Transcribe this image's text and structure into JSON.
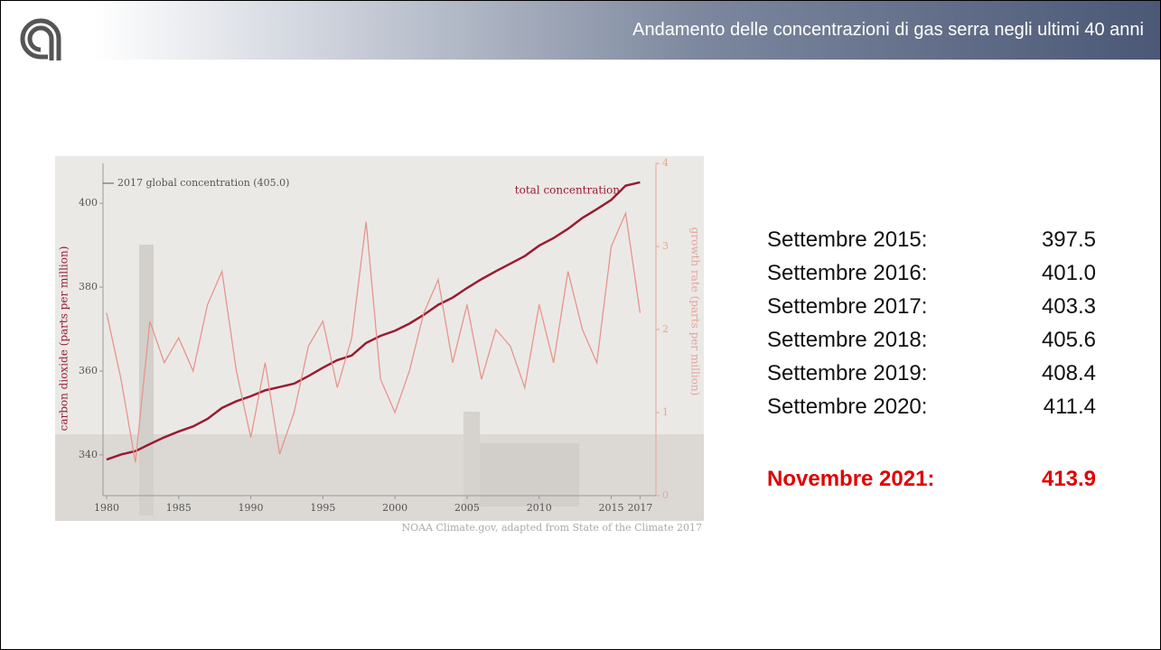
{
  "header": {
    "title": "Andamento delle concentrazioni di gas serra negli ultimi 40 anni"
  },
  "chart_data": {
    "type": "line",
    "ylabel": "carbon dioxide (parts per million)",
    "y2label": "growth rate (parts per million)",
    "annotation": "2017 global concentration (405.0)",
    "source": "NOAA Climate.gov, adapted from State of the Climate 2017",
    "x": [
      1980,
      1981,
      1982,
      1983,
      1984,
      1985,
      1986,
      1987,
      1988,
      1989,
      1990,
      1991,
      1992,
      1993,
      1994,
      1995,
      1996,
      1997,
      1998,
      1999,
      2000,
      2001,
      2002,
      2003,
      2004,
      2005,
      2006,
      2007,
      2008,
      2009,
      2010,
      2011,
      2012,
      2013,
      2014,
      2015,
      2016,
      2017
    ],
    "series": [
      {
        "name": "total concentration",
        "color": "#9b1b30",
        "values": [
          338.9,
          340.1,
          340.9,
          342.6,
          344.2,
          345.6,
          346.8,
          348.6,
          351.2,
          352.8,
          354.0,
          355.4,
          356.2,
          357.0,
          358.8,
          360.8,
          362.6,
          363.7,
          366.7,
          368.4,
          369.6,
          371.3,
          373.4,
          375.8,
          377.5,
          379.8,
          381.9,
          383.8,
          385.6,
          387.4,
          389.9,
          391.7,
          393.9,
          396.5,
          398.6,
          400.8,
          404.2,
          405.0
        ]
      },
      {
        "color": "#e6968a",
        "axis": "y2",
        "values": [
          2.2,
          1.4,
          0.4,
          2.1,
          1.6,
          1.9,
          1.5,
          2.3,
          2.7,
          1.5,
          0.7,
          1.6,
          0.5,
          1.0,
          1.8,
          2.1,
          1.3,
          1.9,
          3.3,
          1.4,
          1.0,
          1.5,
          2.2,
          2.6,
          1.6,
          2.3,
          1.4,
          2.0,
          1.8,
          1.3,
          2.3,
          1.6,
          2.7,
          2.0,
          1.6,
          3.0,
          3.4,
          2.2
        ]
      }
    ],
    "xlim": [
      1979.75,
      2018.1
    ],
    "xticks": [
      1980,
      1985,
      1990,
      1995,
      2000,
      2005,
      2010,
      2015,
      2017
    ],
    "ylim": [
      330.3,
      409.5
    ],
    "yticks": [
      340,
      360,
      380,
      400
    ],
    "y2lim": [
      0,
      4
    ],
    "y2ticks": [
      0,
      1,
      2,
      3,
      4
    ]
  },
  "readings": [
    {
      "label": "Settembre 2015:",
      "value": "397.5"
    },
    {
      "label": "Settembre 2016:",
      "value": "401.0"
    },
    {
      "label": "Settembre 2017:",
      "value": "403.3"
    },
    {
      "label": "Settembre 2018:",
      "value": "405.6"
    },
    {
      "label": "Settembre 2019:",
      "value": "408.4"
    },
    {
      "label": "Settembre 2020:",
      "value": "411.4"
    }
  ],
  "highlight": {
    "label": "Novembre 2021:",
    "value": "413.9"
  }
}
